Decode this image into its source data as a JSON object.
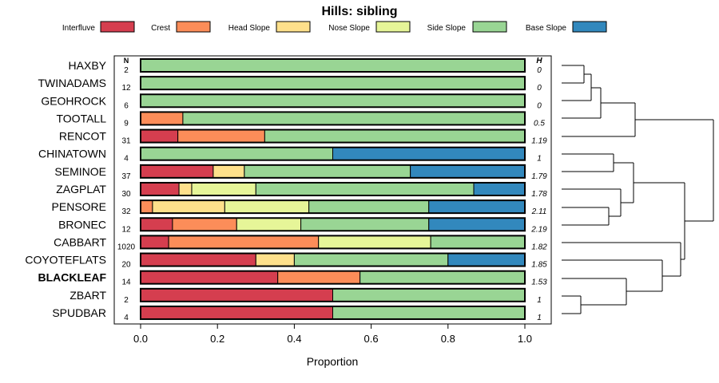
{
  "chart_data": {
    "type": "bar",
    "orientation": "horizontal",
    "stacked": true,
    "title": "Hills: sibling",
    "xlabel": "Proportion",
    "ylabel": "",
    "xlim": [
      0,
      1
    ],
    "xticks": [
      "0.0",
      "0.2",
      "0.4",
      "0.6",
      "0.8",
      "1.0"
    ],
    "n_header": "N",
    "h_header": "H",
    "highlight": "BLACKLEAF",
    "series": [
      {
        "name": "Interfluve",
        "color": "#D53E4F"
      },
      {
        "name": "Crest",
        "color": "#FC8D59"
      },
      {
        "name": "Head Slope",
        "color": "#FEE08B"
      },
      {
        "name": "Nose Slope",
        "color": "#E6F598"
      },
      {
        "name": "Side Slope",
        "color": "#99D594"
      },
      {
        "name": "Base Slope",
        "color": "#3288BD"
      }
    ],
    "rows": [
      {
        "name": "HAXBY",
        "n": "2",
        "h": "0",
        "values": [
          0,
          0,
          0,
          0,
          1.0,
          0
        ]
      },
      {
        "name": "TWINADAMS",
        "n": "12",
        "h": "0",
        "values": [
          0,
          0,
          0,
          0,
          1.0,
          0
        ]
      },
      {
        "name": "GEOHROCK",
        "n": "6",
        "h": "0",
        "values": [
          0,
          0,
          0,
          0,
          1.0,
          0
        ]
      },
      {
        "name": "TOOTALL",
        "n": "9",
        "h": "0.5",
        "values": [
          0,
          0.11,
          0,
          0,
          0.89,
          0
        ]
      },
      {
        "name": "RENCOT",
        "n": "31",
        "h": "1.19",
        "values": [
          0.097,
          0.226,
          0,
          0,
          0.677,
          0
        ]
      },
      {
        "name": "CHINATOWN",
        "n": "4",
        "h": "1",
        "values": [
          0,
          0,
          0,
          0,
          0.5,
          0.5
        ]
      },
      {
        "name": "SEMINOE",
        "n": "37",
        "h": "1.79",
        "values": [
          0.189,
          0,
          0.081,
          0,
          0.432,
          0.298
        ]
      },
      {
        "name": "ZAGPLAT",
        "n": "30",
        "h": "1.78",
        "values": [
          0.1,
          0,
          0.033,
          0.167,
          0.567,
          0.133
        ]
      },
      {
        "name": "PENSORE",
        "n": "32",
        "h": "2.11",
        "values": [
          0,
          0.031,
          0.188,
          0.219,
          0.312,
          0.25
        ]
      },
      {
        "name": "BRONEC",
        "n": "12",
        "h": "2.19",
        "values": [
          0.083,
          0.167,
          0,
          0.167,
          0.333,
          0.25
        ]
      },
      {
        "name": "CABBART",
        "n": "1020",
        "h": "1.82",
        "values": [
          0.073,
          0.39,
          0,
          0.292,
          0.245,
          0
        ]
      },
      {
        "name": "COYOTEFLATS",
        "n": "20",
        "h": "1.85",
        "values": [
          0.3,
          0,
          0.1,
          0,
          0.4,
          0.2
        ]
      },
      {
        "name": "BLACKLEAF",
        "n": "14",
        "h": "1.53",
        "values": [
          0.357,
          0.214,
          0,
          0,
          0.429,
          0
        ]
      },
      {
        "name": "ZBART",
        "n": "2",
        "h": "1",
        "values": [
          0.5,
          0,
          0,
          0,
          0.5,
          0
        ]
      },
      {
        "name": "SPUDBAR",
        "n": "4",
        "h": "1",
        "values": [
          0.5,
          0,
          0,
          0,
          0.5,
          0
        ]
      }
    ]
  }
}
